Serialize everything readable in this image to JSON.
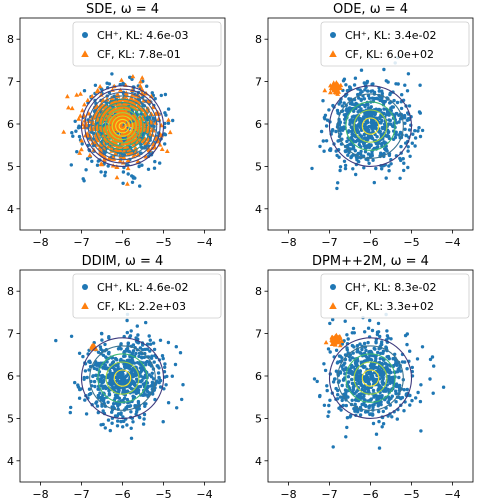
{
  "chart_data": [
    {
      "type": "scatter",
      "title": "SDE, ω = 4",
      "xlim": [
        -8.5,
        -3.5
      ],
      "ylim": [
        3.5,
        8.5
      ],
      "xticks": [
        -8,
        -7,
        -6,
        -5,
        -4
      ],
      "yticks": [
        4,
        5,
        6,
        7,
        8
      ],
      "x_tick_labels": [
        "−8",
        "−7",
        "−6",
        "−5",
        "−4"
      ],
      "y_tick_labels": [
        "4",
        "5",
        "6",
        "7",
        "8"
      ],
      "legend_position": "top-right",
      "series": [
        {
          "name": "CH⁺, KL: 4.6e-03",
          "marker": "circle",
          "color": "#1f77b4",
          "center": [
            -6.0,
            5.95
          ],
          "spread": [
            0.48,
            0.45
          ],
          "n_points": 650
        },
        {
          "name": "CF, KL: 7.8e-01",
          "marker": "triangle",
          "color": "#ff7f0e",
          "center": [
            -6.0,
            6.0
          ],
          "spread": [
            0.45,
            0.42
          ],
          "n_points": 550
        }
      ],
      "contour_rings": 12
    },
    {
      "type": "scatter",
      "title": "ODE, ω = 4",
      "xlim": [
        -8.5,
        -3.5
      ],
      "ylim": [
        3.5,
        8.5
      ],
      "xticks": [
        -8,
        -7,
        -6,
        -5,
        -4
      ],
      "yticks": [
        4,
        5,
        6,
        7,
        8
      ],
      "x_tick_labels": [
        "−8",
        "−7",
        "−6",
        "−5",
        "−4"
      ],
      "y_tick_labels": [
        "4",
        "5",
        "6",
        "7",
        "8"
      ],
      "legend_position": "top-right",
      "series": [
        {
          "name": "CH⁺, KL: 3.4e-02",
          "marker": "circle",
          "color": "#1f77b4",
          "center": [
            -6.0,
            5.95
          ],
          "spread": [
            0.5,
            0.5
          ],
          "n_points": 650
        },
        {
          "name": "CF, KL: 6.0e+02",
          "marker": "triangle",
          "color": "#ff7f0e",
          "center": [
            -6.85,
            6.85
          ],
          "spread": [
            0.06,
            0.06
          ],
          "n_points": 60
        }
      ],
      "contour_rings": 5
    },
    {
      "type": "scatter",
      "title": "DDIM, ω = 4",
      "xlim": [
        -8.5,
        -3.5
      ],
      "ylim": [
        3.5,
        8.5
      ],
      "xticks": [
        -8,
        -7,
        -6,
        -5,
        -4
      ],
      "yticks": [
        4,
        5,
        6,
        7,
        8
      ],
      "x_tick_labels": [
        "−8",
        "−7",
        "−6",
        "−5",
        "−4"
      ],
      "y_tick_labels": [
        "4",
        "5",
        "6",
        "7",
        "8"
      ],
      "legend_position": "top-right",
      "series": [
        {
          "name": "CH⁺, KL: 4.6e-02",
          "marker": "circle",
          "color": "#1f77b4",
          "center": [
            -6.0,
            5.95
          ],
          "spread": [
            0.5,
            0.5
          ],
          "n_points": 650
        },
        {
          "name": "CF, KL: 2.2e+03",
          "marker": "triangle",
          "color": "#ff7f0e",
          "center": [
            -6.72,
            6.68
          ],
          "spread": [
            0.03,
            0.03
          ],
          "n_points": 12
        }
      ],
      "contour_rings": 5
    },
    {
      "type": "scatter",
      "title": "DPM++2M, ω = 4",
      "xlim": [
        -8.5,
        -3.5
      ],
      "ylim": [
        3.5,
        8.5
      ],
      "xticks": [
        -8,
        -7,
        -6,
        -5,
        -4
      ],
      "yticks": [
        4,
        5,
        6,
        7,
        8
      ],
      "x_tick_labels": [
        "−8",
        "−7",
        "−6",
        "−5",
        "−4"
      ],
      "y_tick_labels": [
        "4",
        "5",
        "6",
        "7",
        "8"
      ],
      "legend_position": "top-right",
      "series": [
        {
          "name": "CH⁺, KL: 8.3e-02",
          "marker": "circle",
          "color": "#1f77b4",
          "center": [
            -6.0,
            5.95
          ],
          "spread": [
            0.5,
            0.52
          ],
          "n_points": 650
        },
        {
          "name": "CF, KL: 3.3e+02",
          "marker": "triangle",
          "color": "#ff7f0e",
          "center": [
            -6.82,
            6.85
          ],
          "spread": [
            0.07,
            0.06
          ],
          "n_points": 60
        }
      ],
      "contour_rings": 5
    }
  ]
}
